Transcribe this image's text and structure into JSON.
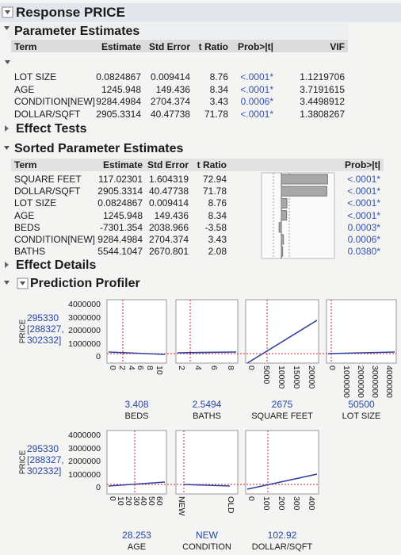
{
  "title": "Response PRICE",
  "parameter_estimates": {
    "title": "Parameter Estimates",
    "columns": [
      "Term",
      "Estimate",
      "Std Error",
      "t Ratio",
      "Prob>|t|",
      "VIF"
    ],
    "rows": [
      [
        "LOT SIZE",
        "0.0824867",
        "0.009414",
        "8.76",
        "<.0001*",
        "1.1219706"
      ],
      [
        "AGE",
        "1245.948",
        "149.436",
        "8.34",
        "<.0001*",
        "3.7191615"
      ],
      [
        "CONDITION[NEW]",
        "9284.4984",
        "2704.374",
        "3.43",
        "0.0006*",
        "3.4498912"
      ],
      [
        "DOLLAR/SQFT",
        "2905.3314",
        "40.47738",
        "71.78",
        "<.0001*",
        "1.3808267"
      ]
    ]
  },
  "effect_tests": {
    "title": "Effect Tests"
  },
  "sorted_parameter_estimates": {
    "title": "Sorted Parameter Estimates",
    "columns": [
      "Term",
      "Estimate",
      "Std Error",
      "t Ratio",
      "Prob>|t|"
    ],
    "rows": [
      [
        "SQUARE FEET",
        "117.02301",
        "1.604319",
        72.94,
        "<.0001*"
      ],
      [
        "DOLLAR/SQFT",
        "2905.3314",
        "40.47738",
        71.78,
        "<.0001*"
      ],
      [
        "LOT SIZE",
        "0.0824867",
        "0.009414",
        8.76,
        "<.0001*"
      ],
      [
        "AGE",
        "1245.948",
        "149.436",
        8.34,
        "<.0001*"
      ],
      [
        "BEDS",
        "-7301.354",
        "2038.966",
        -3.58,
        "0.0003*"
      ],
      [
        "CONDITION[NEW]",
        "9284.4984",
        "2704.374",
        3.43,
        "0.0006*"
      ],
      [
        "BATHS",
        "5544.1047",
        "2670.801",
        2.08,
        "0.0380*"
      ]
    ]
  },
  "effect_details": {
    "title": "Effect Details"
  },
  "profiler": {
    "title": "Prediction Profiler",
    "y_label": "PRICE",
    "predicted": "295330",
    "interval": [
      "[288327,",
      "302332]"
    ],
    "yticks": [
      "4000000",
      "3000000",
      "2000000",
      "1000000",
      "0"
    ],
    "panels": [
      {
        "name": "BEDS",
        "value": "3.408",
        "ticks": [
          "0",
          "2",
          "4",
          "6",
          "8",
          "10"
        ]
      },
      {
        "name": "BATHS",
        "value": "2.5494",
        "ticks": [
          "2",
          "4",
          "6",
          "8"
        ]
      },
      {
        "name": "SQUARE FEET",
        "value": "2675",
        "ticks": [
          "0",
          "5000",
          "10000",
          "15000",
          "20000"
        ]
      },
      {
        "name": "LOT SIZE",
        "value": "50500",
        "ticks": [
          "0",
          "1000000",
          "2000000",
          "3000000",
          "4000000"
        ]
      },
      {
        "name": "AGE",
        "value": "28.253",
        "ticks": [
          "0",
          "10",
          "20",
          "30",
          "40",
          "50",
          "60"
        ]
      },
      {
        "name": "CONDITION",
        "value": "NEW",
        "ticks": [
          "NEW",
          "OLD"
        ]
      },
      {
        "name": "DOLLAR/SQFT",
        "value": "102.92",
        "ticks": [
          "0",
          "100",
          "200",
          "300",
          "400"
        ]
      }
    ]
  }
}
